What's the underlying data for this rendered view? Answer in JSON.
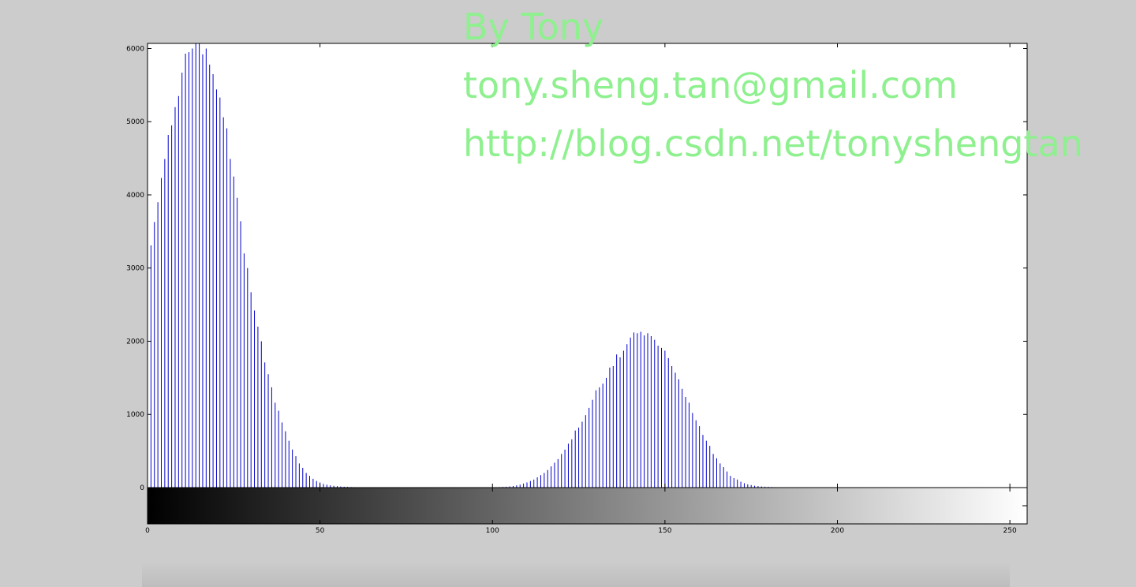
{
  "chart_data": {
    "type": "stem",
    "annotations": [
      "By Tony",
      "tony.sheng.tan@gmail.com",
      "http://blog.csdn.net/tonyshengtan"
    ],
    "color": "#0000cc",
    "annotation_color": "#8ef08e",
    "xlim": [
      0,
      255
    ],
    "ylim": [
      0,
      6070
    ],
    "xticks": [
      0,
      50,
      100,
      150,
      200,
      250
    ],
    "yticks": [
      0,
      1000,
      2000,
      3000,
      4000,
      5000,
      6000
    ],
    "x": [
      0,
      1,
      2,
      3,
      4,
      5,
      6,
      7,
      8,
      9,
      10,
      11,
      12,
      13,
      14,
      15,
      16,
      17,
      18,
      19,
      20,
      21,
      22,
      23,
      24,
      25,
      26,
      27,
      28,
      29,
      30,
      31,
      32,
      33,
      34,
      35,
      36,
      37,
      38,
      39,
      40,
      41,
      42,
      43,
      44,
      45,
      46,
      47,
      48,
      49,
      50,
      51,
      52,
      53,
      54,
      55,
      56,
      57,
      58,
      59,
      60,
      61,
      62,
      63,
      64,
      65,
      66,
      67,
      68,
      69,
      70,
      71,
      72,
      73,
      74,
      75,
      76,
      77,
      78,
      79,
      80,
      81,
      82,
      83,
      84,
      85,
      86,
      87,
      88,
      89,
      90,
      91,
      92,
      93,
      94,
      95,
      96,
      97,
      98,
      99,
      100,
      101,
      102,
      103,
      104,
      105,
      106,
      107,
      108,
      109,
      110,
      111,
      112,
      113,
      114,
      115,
      116,
      117,
      118,
      119,
      120,
      121,
      122,
      123,
      124,
      125,
      126,
      127,
      128,
      129,
      130,
      131,
      132,
      133,
      134,
      135,
      136,
      137,
      138,
      139,
      140,
      141,
      142,
      143,
      144,
      145,
      146,
      147,
      148,
      149,
      150,
      151,
      152,
      153,
      154,
      155,
      156,
      157,
      158,
      159,
      160,
      161,
      162,
      163,
      164,
      165,
      166,
      167,
      168,
      169,
      170,
      171,
      172,
      173,
      174,
      175,
      176,
      177,
      178,
      179,
      180,
      181,
      182,
      183,
      184,
      185,
      186,
      187,
      188,
      189,
      190,
      191,
      192,
      193,
      194,
      195,
      196,
      197,
      198,
      199,
      200,
      201,
      202,
      203,
      204,
      205,
      206,
      207,
      208,
      209,
      210,
      211,
      212,
      213,
      214,
      215,
      216,
      217,
      218,
      219,
      220,
      221,
      222,
      223,
      224,
      225,
      226,
      227,
      228,
      229,
      230,
      231,
      232,
      233,
      234,
      235,
      236,
      237,
      238,
      239,
      240,
      241,
      242,
      243,
      244,
      245,
      246,
      247,
      248,
      249,
      250,
      251,
      252,
      253,
      254,
      255
    ],
    "values": [
      3000,
      3310,
      3630,
      3900,
      4230,
      4490,
      4820,
      4950,
      5200,
      5350,
      5670,
      5930,
      5950,
      6000,
      6070,
      6070,
      5920,
      6000,
      5780,
      5650,
      5440,
      5330,
      5060,
      4910,
      4490,
      4250,
      3960,
      3640,
      3200,
      3000,
      2670,
      2420,
      2200,
      2000,
      1710,
      1550,
      1370,
      1160,
      1050,
      890,
      770,
      640,
      520,
      430,
      330,
      270,
      200,
      160,
      120,
      90,
      70,
      50,
      40,
      30,
      25,
      20,
      15,
      12,
      10,
      8,
      6,
      5,
      4,
      3,
      3,
      2,
      2,
      2,
      1,
      0,
      0,
      0,
      0,
      0,
      0,
      0,
      0,
      0,
      0,
      0,
      0,
      0,
      0,
      0,
      0,
      0,
      0,
      0,
      0,
      0,
      0,
      1,
      1,
      1,
      1,
      1,
      1,
      2,
      2,
      3,
      4,
      5,
      7,
      9,
      12,
      16,
      22,
      30,
      40,
      55,
      70,
      90,
      110,
      140,
      170,
      200,
      240,
      290,
      340,
      390,
      460,
      520,
      600,
      660,
      780,
      820,
      900,
      990,
      1090,
      1200,
      1330,
      1370,
      1420,
      1500,
      1640,
      1660,
      1820,
      1780,
      1870,
      1960,
      2050,
      2120,
      2110,
      2130,
      2080,
      2110,
      2070,
      2020,
      1940,
      1910,
      1870,
      1770,
      1660,
      1570,
      1480,
      1350,
      1240,
      1160,
      1020,
      920,
      840,
      720,
      640,
      570,
      460,
      400,
      330,
      280,
      220,
      160,
      130,
      110,
      80,
      60,
      45,
      35,
      25,
      20,
      15,
      12,
      10,
      8,
      6,
      5,
      4,
      3,
      3,
      2,
      2,
      2,
      1,
      1,
      1,
      1,
      1,
      1,
      1,
      0,
      0,
      0,
      0,
      0,
      0,
      0,
      0,
      0,
      0,
      0,
      0,
      0,
      0,
      0,
      0,
      0,
      0,
      0,
      0,
      0,
      0,
      0,
      0,
      0,
      0,
      0,
      0,
      0,
      0,
      0,
      0,
      0,
      0,
      0,
      0,
      0,
      0,
      0,
      0,
      0,
      0,
      0,
      0,
      0,
      0,
      0,
      0,
      0,
      0,
      0,
      0,
      0,
      0,
      0,
      0,
      0,
      0,
      0
    ]
  }
}
